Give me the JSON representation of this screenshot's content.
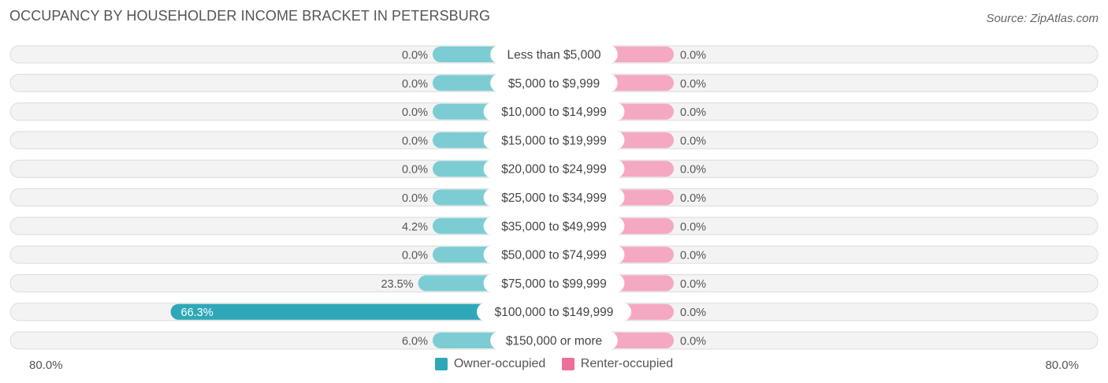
{
  "chart_data": {
    "type": "bar",
    "orientation": "horizontal-diverging",
    "title": "OCCUPANCY BY HOUSEHOLDER INCOME BRACKET IN PETERSBURG",
    "source": "Source: ZipAtlas.com",
    "categories": [
      "Less than $5,000",
      "$5,000 to $9,999",
      "$10,000 to $14,999",
      "$15,000 to $19,999",
      "$20,000 to $24,999",
      "$25,000 to $34,999",
      "$35,000 to $49,999",
      "$50,000 to $74,999",
      "$75,000 to $99,999",
      "$100,000 to $149,999",
      "$150,000 or more"
    ],
    "series": [
      {
        "name": "Owner-occupied",
        "color": "#7ccdd3",
        "highlight_color": "#2ea8b8",
        "values": [
          0.0,
          0.0,
          0.0,
          0.0,
          0.0,
          0.0,
          4.2,
          0.0,
          23.5,
          66.3,
          6.0
        ],
        "labels": [
          "0.0%",
          "0.0%",
          "0.0%",
          "0.0%",
          "0.0%",
          "0.0%",
          "4.2%",
          "0.0%",
          "23.5%",
          "66.3%",
          "6.0%"
        ]
      },
      {
        "name": "Renter-occupied",
        "color": "#f5a8c2",
        "legend_color": "#ef6f98",
        "values": [
          0.0,
          0.0,
          0.0,
          0.0,
          0.0,
          0.0,
          0.0,
          0.0,
          0.0,
          0.0,
          0.0
        ],
        "labels": [
          "0.0%",
          "0.0%",
          "0.0%",
          "0.0%",
          "0.0%",
          "0.0%",
          "0.0%",
          "0.0%",
          "0.0%",
          "0.0%",
          "0.0%"
        ]
      }
    ],
    "axis_max": 80.0,
    "axis_left_label": "80.0%",
    "axis_right_label": "80.0%",
    "legend_position": "bottom-center"
  }
}
